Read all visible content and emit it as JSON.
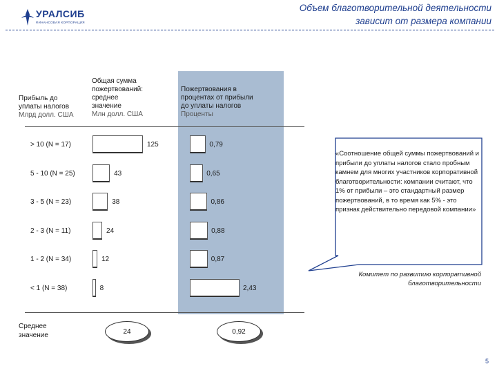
{
  "logo": {
    "name": "УРАЛСИБ",
    "subtitle": "ФИНАНСОВАЯ КОРПОРАЦИЯ"
  },
  "title": {
    "line1": "Объем благотворительной деятельности",
    "line2": "зависит от размера компании"
  },
  "chart_data": {
    "type": "bar",
    "title": "Объем благотворительной деятельности зависит от размера компании",
    "category_header": {
      "title": "Прибыль до уплаты налогов",
      "unit": "Млрд долл. США"
    },
    "categories": [
      "> 10 (N = 17)",
      "5 - 10 (N = 25)",
      "3 - 5 (N = 23)",
      "2 - 3 (N = 11)",
      "1 - 2 (N = 34)",
      "< 1 (N = 38)"
    ],
    "series": [
      {
        "name": "Общая сумма пожертвований: среднее значение",
        "unit": "Млн долл. США",
        "values": [
          125,
          43,
          38,
          24,
          12,
          8
        ],
        "labels": [
          "125",
          "43",
          "38",
          "24",
          "12",
          "8"
        ],
        "average": "24"
      },
      {
        "name": "Пожертвования в процентах от прибыли до уплаты налогов",
        "unit": "Проценты",
        "values": [
          0.79,
          0.65,
          0.86,
          0.88,
          0.87,
          2.43
        ],
        "labels": [
          "0,79",
          "0,65",
          "0,86",
          "0,88",
          "0,87",
          "2,43"
        ],
        "average": "0,92"
      }
    ],
    "average_label": "Среднее значение"
  },
  "headers": {
    "col1": [
      "Прибыль до",
      "уплаты налогов"
    ],
    "col1_unit": "Млрд долл. США",
    "col2": [
      "Общая сумма",
      "пожертвований:",
      "среднее",
      "значение"
    ],
    "col2_unit": "Млн долл. США",
    "col3": [
      "Пожертвования в",
      "процентах от прибыли",
      "до уплаты налогов"
    ],
    "col3_unit": "Проценты"
  },
  "average": {
    "label_line1": "Среднее",
    "label_line2": "значение"
  },
  "quote": {
    "text": "«Соотношение общей суммы пожертвований и прибыли до уплаты налогов стало пробным камнем для многих участников корпоративной благотворительности: компании считают, что 1% от прибыли – это стандартный размер пожертвований, в то время как 5% - это признак действительно передовой компании»",
    "attribution": "Комитет по развитию корпоративной благотворительности"
  },
  "page_number": "5",
  "colors": {
    "brand": "#1f3f8f",
    "panel": "#a9bcd2"
  }
}
